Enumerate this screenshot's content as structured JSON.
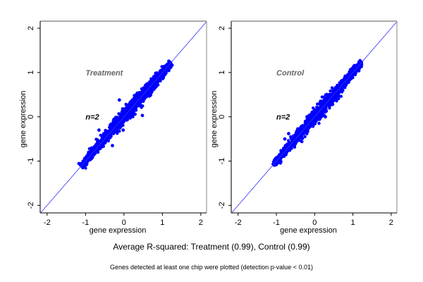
{
  "summary": "Average R-squared: Treatment (0.99), Control (0.99)",
  "footnote": "Genes detected at least one chip were plotted (detection p-value < 0.01)",
  "colors": {
    "points": "#0000ff",
    "diagonal": "#3333ff",
    "frame": "#999999",
    "title": "#666666"
  },
  "chart_data": [
    {
      "type": "scatter",
      "title": "Treatment",
      "annotation": "n=2",
      "xlabel": "gene expression",
      "ylabel": "gene expression",
      "xlim": [
        -2.18,
        2.15
      ],
      "ylim": [
        -2.17,
        2.16
      ],
      "xticks": [
        "-2",
        "-1",
        "0",
        "1",
        "2"
      ],
      "yticks": [
        "-2",
        "-1",
        "0",
        "1",
        "2"
      ],
      "reference_line": "y = x",
      "point_cloud": {
        "x_range": [
          -1.12,
          1.22
        ],
        "spread": 0.07,
        "count": 1400
      },
      "outliers": [
        {
          "x": -0.12,
          "y": 0.38
        },
        {
          "x": 0.48,
          "y": 0.03
        },
        {
          "x": -0.3,
          "y": -0.65
        },
        {
          "x": -0.02,
          "y": -0.3
        },
        {
          "x": -0.65,
          "y": -0.3
        }
      ]
    },
    {
      "type": "scatter",
      "title": "Control",
      "annotation": "n=2",
      "xlabel": "gene expression",
      "ylabel": "gene expression",
      "xlim": [
        -2.18,
        2.15
      ],
      "ylim": [
        -2.17,
        2.16
      ],
      "xticks": [
        "-2",
        "-1",
        "0",
        "1",
        "2"
      ],
      "yticks": [
        "-2",
        "-1",
        "0",
        "1",
        "2"
      ],
      "reference_line": "y = x",
      "point_cloud": {
        "x_range": [
          -1.08,
          1.23
        ],
        "spread": 0.065,
        "count": 1400
      },
      "outliers": [
        {
          "x": 0.28,
          "y": 0.0
        },
        {
          "x": -0.78,
          "y": -0.5
        },
        {
          "x": -0.68,
          "y": -0.38
        },
        {
          "x": 0.47,
          "y": 0.28
        },
        {
          "x": -0.2,
          "y": 0.0
        }
      ]
    }
  ]
}
